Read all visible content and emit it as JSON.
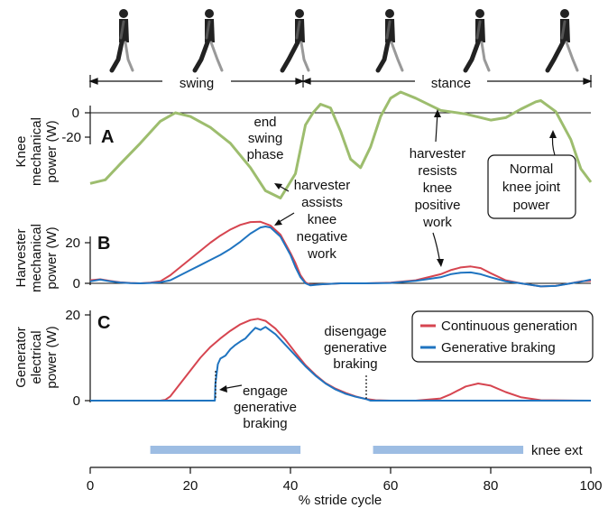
{
  "phases": {
    "swing": "swing",
    "stance": "stance"
  },
  "colors": {
    "normal_knee": "#9dbd6e",
    "continuous": "#d64550",
    "braking": "#1f74c0",
    "knee_ext_bar": "#9dbde3"
  },
  "icons": [
    "walking-figure-icon",
    "walking-figure-icon",
    "walking-figure-icon",
    "walking-figure-icon",
    "walking-figure-icon",
    "walking-figure-icon"
  ],
  "annotations": {
    "end_swing": [
      "end",
      "swing",
      "phase"
    ],
    "assists": [
      "harvester",
      "assists",
      "knee",
      "negative",
      "work"
    ],
    "resists": [
      "harvester",
      "resists",
      "knee",
      "positive",
      "work"
    ],
    "normal_knee": [
      "Normal",
      "knee joint",
      "power"
    ],
    "disengage": [
      "disengage",
      "generative",
      "braking"
    ],
    "engage": [
      "engage",
      "generative",
      "braking"
    ]
  },
  "knee_ext_label": "knee ext",
  "chart_data": [
    {
      "id": "A",
      "type": "line",
      "panel_label": "A",
      "ylabel": [
        "Knee",
        "mechanical",
        "power (W)"
      ],
      "yticks": [
        0,
        -20
      ],
      "series": [
        {
          "name": "Normal knee joint power",
          "x": [
            0,
            3,
            6,
            10,
            14,
            17,
            20,
            24,
            28,
            32,
            35,
            38,
            41,
            43,
            44.5,
            46,
            48,
            50,
            52,
            54,
            56,
            58,
            60,
            62,
            65,
            70,
            75,
            80,
            83,
            86,
            89,
            90,
            93,
            96,
            98,
            100
          ],
          "y": [
            -58,
            -55,
            -42,
            -25,
            -7,
            0,
            -3,
            -12,
            -25,
            -45,
            -64,
            -70,
            -50,
            -10,
            0,
            7,
            4,
            -15,
            -38,
            -45,
            -28,
            -3,
            12,
            17,
            12,
            2,
            -1,
            -6,
            -4,
            3,
            9,
            10,
            1,
            -22,
            -46,
            -57
          ]
        }
      ],
      "xlim": [
        0,
        100
      ],
      "ylim": [
        -66,
        20
      ]
    },
    {
      "id": "B",
      "type": "line",
      "panel_label": "B",
      "ylabel": [
        "Harvester",
        "mechanical",
        "power (W)"
      ],
      "yticks": [
        20,
        0
      ],
      "series": [
        {
          "name": "Continuous generation",
          "x": [
            0,
            2,
            4,
            6,
            8,
            10,
            12,
            14,
            16,
            18,
            20,
            22,
            24,
            26,
            28,
            30,
            32,
            34,
            36,
            38,
            40,
            41,
            42,
            43,
            44,
            46,
            50,
            55,
            60,
            65,
            70,
            72,
            74,
            76,
            78,
            80,
            83,
            86,
            90,
            93,
            96,
            98,
            100
          ],
          "y": [
            1.5,
            2,
            1.2,
            0.5,
            0.2,
            0,
            0.3,
            1,
            4,
            8,
            12,
            16,
            20,
            23.5,
            26.5,
            28.8,
            30.2,
            30.3,
            28.5,
            24,
            15,
            10,
            4,
            0.5,
            -0.8,
            -0.5,
            0,
            0,
            0.3,
            1.5,
            4.5,
            6.5,
            7.8,
            8.3,
            7.5,
            5,
            1.5,
            0,
            -1.5,
            -1.2,
            0,
            1,
            1.2
          ]
        },
        {
          "name": "Generative braking",
          "x": [
            0,
            2,
            4,
            6,
            8,
            10,
            12,
            14,
            16,
            18,
            20,
            22,
            24,
            26,
            28,
            30,
            32,
            34,
            35,
            36,
            38,
            40,
            41,
            42,
            43,
            44,
            46,
            50,
            55,
            60,
            65,
            70,
            72,
            74,
            76,
            78,
            80,
            83,
            86,
            90,
            93,
            96,
            98,
            100
          ],
          "y": [
            1,
            1.8,
            1,
            0.4,
            0.1,
            0,
            0.2,
            0.5,
            1.5,
            4,
            6.5,
            9,
            11.5,
            14,
            17,
            20.5,
            24.5,
            27.5,
            28,
            27.5,
            23,
            14,
            8,
            3,
            0,
            -1,
            -0.5,
            0,
            0,
            0.2,
            1.2,
            3,
            4.5,
            5.2,
            5.4,
            4.5,
            3,
            1,
            0,
            -1.5,
            -1.3,
            0,
            0.8,
            1.8
          ]
        }
      ],
      "xlim": [
        0,
        100
      ],
      "ylim": [
        -2,
        34
      ]
    },
    {
      "id": "C",
      "type": "line",
      "panel_label": "C",
      "ylabel": [
        "Generator",
        "electrical",
        "power (W)"
      ],
      "yticks": [
        20,
        0
      ],
      "series": [
        {
          "name": "Continuous generation",
          "x": [
            0,
            8,
            12,
            14,
            15,
            16,
            18,
            20,
            22,
            24,
            26,
            28,
            30,
            32,
            33.5,
            35,
            37,
            39,
            41,
            43,
            45,
            47,
            49,
            51,
            53,
            55,
            57,
            60,
            65,
            70,
            72,
            75,
            77.5,
            80,
            83,
            86,
            90,
            100
          ],
          "y": [
            0,
            0,
            0,
            0,
            0.2,
            1,
            4,
            7,
            10,
            12.5,
            14.5,
            16.3,
            17.8,
            18.8,
            19.1,
            18.6,
            16.8,
            14.2,
            11.2,
            8.3,
            6,
            4.1,
            2.8,
            1.8,
            1,
            0.4,
            0.1,
            0,
            0,
            0.5,
            1.5,
            3.3,
            4,
            3.5,
            2,
            0.8,
            0.1,
            0
          ]
        },
        {
          "name": "Generative braking",
          "x": [
            0,
            10,
            20,
            24.9,
            25,
            25.5,
            26,
            27,
            28,
            29,
            30,
            31,
            32,
            33,
            34,
            35,
            37,
            39,
            41,
            43,
            45,
            47,
            49,
            51,
            53,
            55,
            56,
            60,
            70,
            80,
            90,
            100
          ],
          "y": [
            0,
            0,
            0,
            0,
            4,
            8.5,
            9.8,
            10.5,
            12,
            13,
            13.8,
            14.5,
            15.8,
            17,
            16.5,
            17.2,
            15.5,
            13,
            10.5,
            8,
            5.8,
            4,
            2.6,
            1.6,
            0.9,
            0.4,
            0,
            0,
            0,
            0,
            0,
            0
          ]
        }
      ],
      "legend": [
        "Continuous generation",
        "Generative braking"
      ],
      "legend_position": "top-right",
      "xlim": [
        0,
        100
      ],
      "ylim": [
        -0.5,
        20
      ]
    }
  ],
  "knee_ext_ranges": [
    [
      12,
      42
    ],
    [
      56.5,
      86.5
    ]
  ],
  "x_axis": {
    "label": "% stride cycle",
    "ticks": [
      0,
      20,
      40,
      60,
      80,
      100
    ]
  }
}
